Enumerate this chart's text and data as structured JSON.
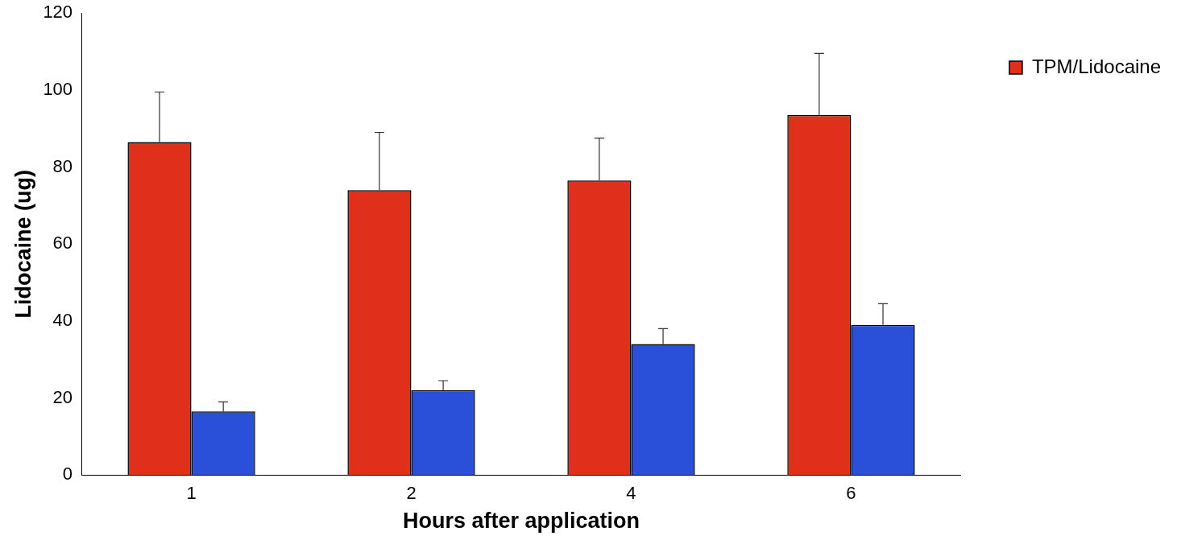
{
  "chart_data": {
    "type": "bar",
    "xlabel": "Hours after application",
    "ylabel": "Lidocaine (ug)",
    "categories": [
      "1",
      "2",
      "4",
      "6"
    ],
    "series": [
      {
        "name": "TPM/Lidocaine",
        "color": "#e0301c",
        "values": [
          86.5,
          74,
          76.5,
          93.5
        ],
        "errors": [
          13,
          15,
          11,
          16
        ]
      },
      {
        "color": "#2a4fd8",
        "values": [
          16.5,
          22,
          34,
          39
        ],
        "errors": [
          2.5,
          2.5,
          4,
          5.5
        ]
      }
    ],
    "ylim": [
      0,
      120
    ],
    "yticks": [
      0,
      20,
      40,
      60,
      80,
      100,
      120
    ],
    "legend": "top right"
  }
}
